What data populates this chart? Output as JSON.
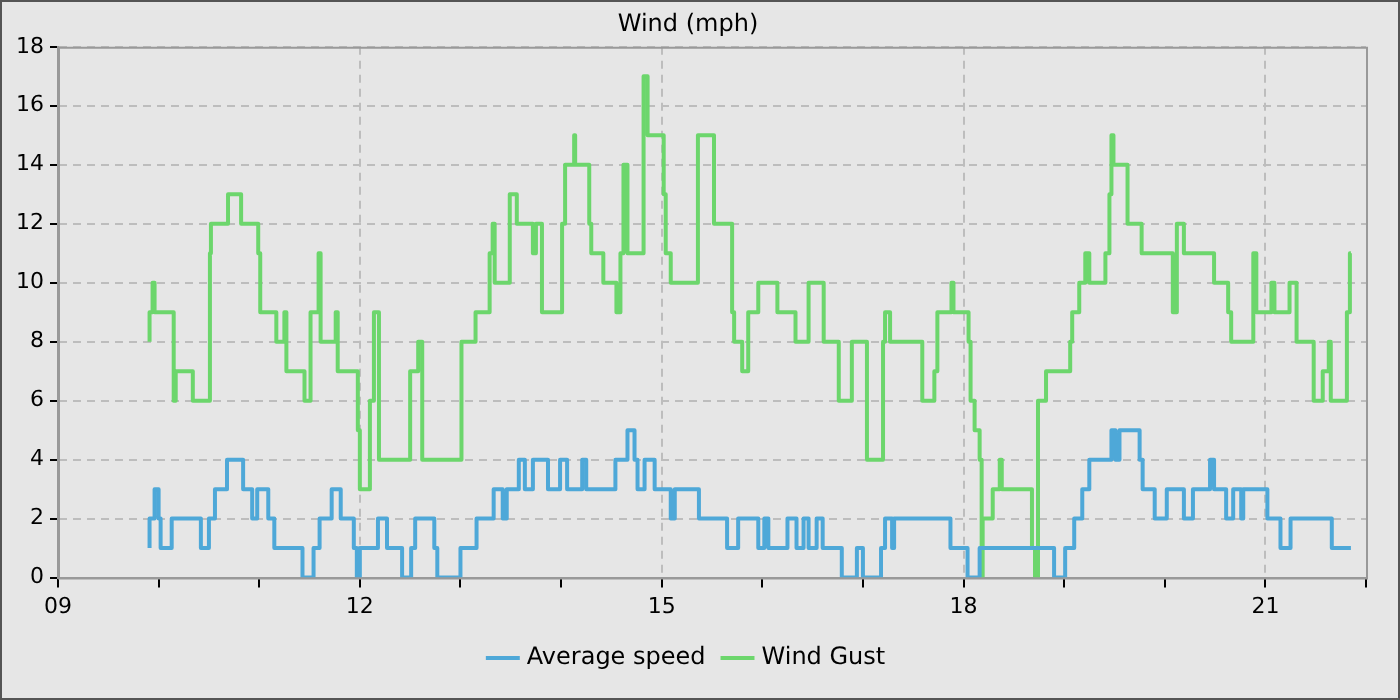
{
  "chart_data": {
    "type": "step",
    "title": "Wind (mph)",
    "xlim": [
      9,
      22
    ],
    "xticks": [
      {
        "value": 9,
        "label": "09"
      },
      {
        "value": 10,
        "label": null
      },
      {
        "value": 11,
        "label": null
      },
      {
        "value": 12,
        "label": "12"
      },
      {
        "value": 13,
        "label": null
      },
      {
        "value": 14,
        "label": null
      },
      {
        "value": 15,
        "label": "15"
      },
      {
        "value": 16,
        "label": null
      },
      {
        "value": 17,
        "label": null
      },
      {
        "value": 18,
        "label": "18"
      },
      {
        "value": 19,
        "label": null
      },
      {
        "value": 20,
        "label": null
      },
      {
        "value": 21,
        "label": "21"
      },
      {
        "value": 22,
        "label": null
      }
    ],
    "ylim": [
      0,
      18
    ],
    "yticks": [
      0,
      2,
      4,
      6,
      8,
      10,
      12,
      14,
      16,
      18
    ],
    "grid": true,
    "legend": "bottom",
    "marker": "none",
    "line_style": "solid",
    "series": [
      {
        "name": "Average speed",
        "color": "#4ea8d8",
        "x": [
          9.91,
          9.96,
          10.0,
          10.02,
          10.13,
          10.42,
          10.5,
          10.56,
          10.68,
          10.84,
          10.93,
          10.98,
          11.09,
          11.15,
          11.43,
          11.54,
          11.6,
          11.72,
          11.81,
          11.94,
          11.97,
          12.0,
          12.18,
          12.27,
          12.42,
          12.51,
          12.55,
          12.74,
          12.77,
          13.0,
          13.16,
          13.33,
          13.42,
          13.46,
          13.58,
          13.64,
          13.72,
          13.87,
          13.99,
          14.06,
          14.21,
          14.25,
          14.54,
          14.66,
          14.73,
          14.76,
          14.83,
          14.93,
          15.09,
          15.13,
          15.37,
          15.65,
          15.76,
          15.96,
          16.02,
          16.06,
          16.25,
          16.34,
          16.41,
          16.46,
          16.54,
          16.6,
          16.79,
          16.94,
          17.0,
          17.18,
          17.22,
          17.29,
          17.31,
          17.87,
          18.04,
          18.16,
          18.9,
          19.01,
          19.1,
          19.18,
          19.25,
          19.47,
          19.51,
          19.55,
          19.75,
          19.78,
          19.9,
          20.02,
          20.19,
          20.28,
          20.45,
          20.49,
          20.61,
          20.68,
          20.76,
          20.78,
          21.02,
          21.15,
          21.25,
          21.66,
          21.76,
          21.85
        ],
        "values": [
          1,
          2,
          3,
          2,
          1,
          2,
          1,
          2,
          3,
          4,
          3,
          2,
          3,
          2,
          1,
          0,
          1,
          2,
          3,
          2,
          1,
          0,
          1,
          2,
          1,
          0,
          1,
          2,
          1,
          0,
          1,
          2,
          3,
          2,
          3,
          4,
          3,
          4,
          3,
          4,
          3,
          4,
          3,
          4,
          5,
          4,
          3,
          4,
          3,
          2,
          3,
          2,
          1,
          2,
          1,
          2,
          1,
          2,
          1,
          2,
          1,
          2,
          1,
          0,
          1,
          0,
          1,
          2,
          1,
          2,
          1,
          0,
          1,
          0,
          1,
          2,
          3,
          4,
          5,
          4,
          5,
          4,
          3,
          2,
          3,
          2,
          3,
          4,
          3,
          2,
          3,
          2,
          3,
          2,
          1,
          2,
          1,
          1
        ]
      },
      {
        "name": "Wind Gust",
        "color": "#6cd66c",
        "x": [
          9.91,
          9.94,
          9.96,
          10.15,
          10.17,
          10.34,
          10.51,
          10.52,
          10.69,
          10.82,
          10.99,
          11.01,
          11.17,
          11.25,
          11.27,
          11.45,
          11.51,
          11.59,
          11.61,
          11.76,
          11.78,
          11.98,
          12.0,
          12.1,
          12.14,
          12.19,
          12.5,
          12.58,
          12.62,
          13.01,
          13.15,
          13.29,
          13.32,
          13.34,
          13.49,
          13.56,
          13.72,
          13.75,
          13.81,
          14.01,
          14.04,
          14.13,
          14.14,
          14.28,
          14.3,
          14.42,
          14.55,
          14.59,
          14.62,
          14.66,
          14.82,
          14.86,
          15.02,
          15.04,
          15.09,
          15.36,
          15.52,
          15.7,
          15.72,
          15.8,
          15.86,
          15.96,
          16.15,
          16.33,
          16.46,
          16.61,
          16.76,
          16.89,
          17.04,
          17.2,
          17.22,
          17.27,
          17.59,
          17.71,
          17.74,
          17.88,
          17.9,
          18.05,
          18.07,
          18.11,
          18.16,
          18.18,
          18.19,
          18.29,
          18.36,
          18.38,
          18.68,
          18.71,
          18.74,
          18.82,
          19.06,
          19.08,
          19.15,
          19.21,
          19.25,
          19.41,
          19.45,
          19.47,
          19.49,
          19.63,
          19.77,
          20.08,
          20.12,
          20.19,
          20.49,
          20.63,
          20.66,
          20.88,
          20.91,
          21.06,
          21.09,
          21.24,
          21.31,
          21.48,
          21.57,
          21.63,
          21.65,
          21.81,
          21.84,
          21.85
        ],
        "values": [
          8,
          9,
          10,
          9,
          6,
          7,
          6,
          11,
          12,
          13,
          12,
          11,
          9,
          8,
          9,
          7,
          6,
          9,
          11,
          8,
          9,
          7,
          5,
          3,
          6,
          9,
          4,
          7,
          8,
          4,
          8,
          9,
          11,
          12,
          10,
          13,
          12,
          11,
          12,
          9,
          12,
          14,
          15,
          14,
          12,
          11,
          10,
          9,
          11,
          14,
          11,
          17,
          15,
          13,
          11,
          10,
          15,
          12,
          9,
          8,
          7,
          9,
          10,
          9,
          8,
          10,
          8,
          6,
          8,
          4,
          8,
          9,
          8,
          6,
          7,
          9,
          10,
          9,
          8,
          6,
          5,
          4,
          0,
          2,
          3,
          4,
          3,
          1,
          0,
          6,
          7,
          8,
          9,
          10,
          11,
          10,
          11,
          13,
          15,
          14,
          12,
          11,
          9,
          12,
          11,
          10,
          9,
          8,
          11,
          9,
          10,
          9,
          10,
          8,
          6,
          7,
          8,
          6,
          9,
          11
        ]
      }
    ]
  }
}
